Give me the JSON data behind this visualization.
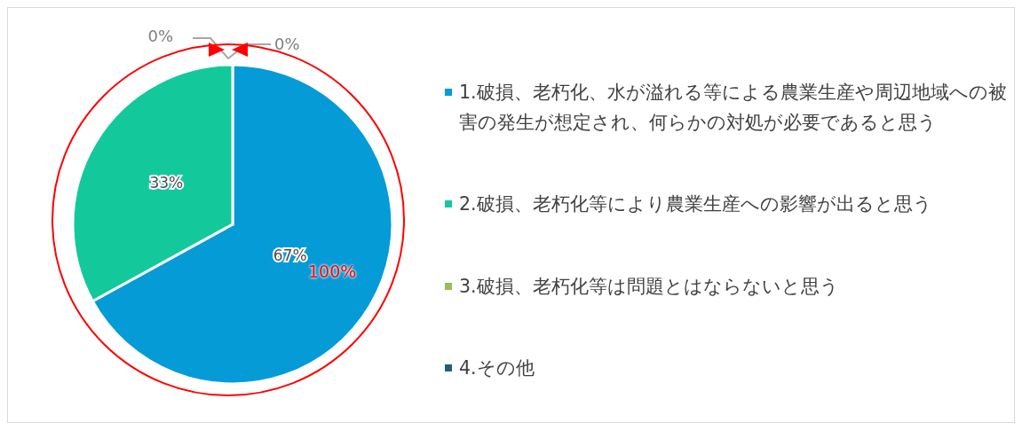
{
  "chart_data": {
    "type": "pie",
    "categories": [
      "1.破損、老朽化、水が溢れる等による農業生産や周辺地域への被害の発生が想定され、何らかの対処が必要であると思う",
      "2.破損、老朽化等により農業生産への影響が出ると思う",
      "3.破損、老朽化等は問題とはならないと思う",
      "4.その他"
    ],
    "values": [
      67,
      33,
      0,
      0
    ],
    "value_labels": [
      "67%",
      "33%",
      "0%",
      "0%"
    ],
    "colors": [
      "#049bd6",
      "#13c99b",
      "#9bbb59",
      "#1f5f7a"
    ],
    "legend": "right",
    "annotations": [
      "100%"
    ]
  }
}
